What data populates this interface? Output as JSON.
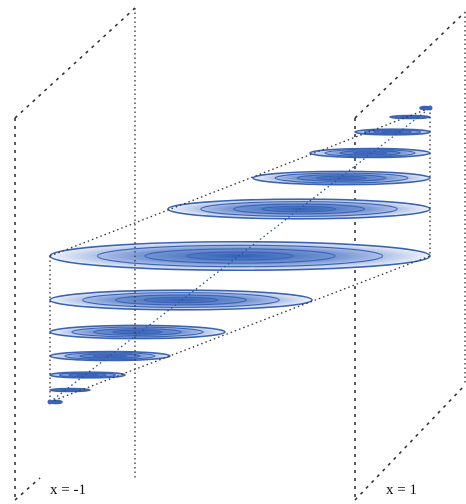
{
  "labels": {
    "left_plane": "x = -1",
    "right_plane": "x = 1"
  }
}
